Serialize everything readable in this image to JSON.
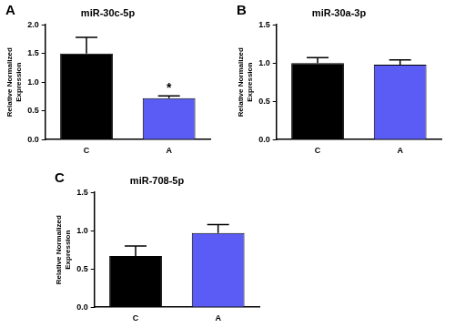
{
  "chart_data": [
    {
      "panel": "A",
      "type": "bar",
      "title": "miR-30c-5p",
      "categories": [
        "C",
        "A"
      ],
      "values": [
        1.5,
        0.72
      ],
      "errors": [
        0.28,
        0.04
      ],
      "colors": [
        "#000000",
        "#5b5bf5"
      ],
      "ylim": [
        0,
        2
      ],
      "yticks": [
        {
          "value": 0,
          "label": "0.0"
        },
        0.5,
        {
          "value": 1,
          "label": "1.0"
        },
        1.5,
        {
          "value": 2,
          "label": "2.0"
        }
      ],
      "y_label": [
        "Relative Normalized",
        "Expression"
      ],
      "annotations": [
        {
          "text": "*",
          "category": "A"
        }
      ],
      "grid": false
    },
    {
      "panel": "B",
      "type": "bar",
      "title": "miR-30a-3p",
      "categories": [
        "C",
        "A"
      ],
      "values": [
        1.0,
        0.98
      ],
      "errors": [
        0.07,
        0.06
      ],
      "colors": [
        "#000000",
        "#5b5bf5"
      ],
      "ylim": [
        0,
        1.5
      ],
      "yticks": [
        {
          "value": 0,
          "label": "0.0"
        },
        0.5,
        {
          "value": 1,
          "label": "1.0"
        },
        1.5
      ],
      "y_label": [
        "Relative Normalized",
        "Expression"
      ],
      "grid": false
    },
    {
      "panel": "C",
      "type": "bar",
      "title": "miR-708-5p",
      "categories": [
        "C",
        "A"
      ],
      "values": [
        0.67,
        0.97
      ],
      "errors": [
        0.13,
        0.11
      ],
      "colors": [
        "#000000",
        "#5b5bf5"
      ],
      "ylim": [
        0,
        1.5
      ],
      "yticks": [
        {
          "value": 0,
          "label": "0.0"
        },
        0.5,
        {
          "value": 1,
          "label": "1.0"
        },
        1.5
      ],
      "y_label": [
        "Relative Normalized",
        "Expression"
      ],
      "grid": false
    }
  ]
}
